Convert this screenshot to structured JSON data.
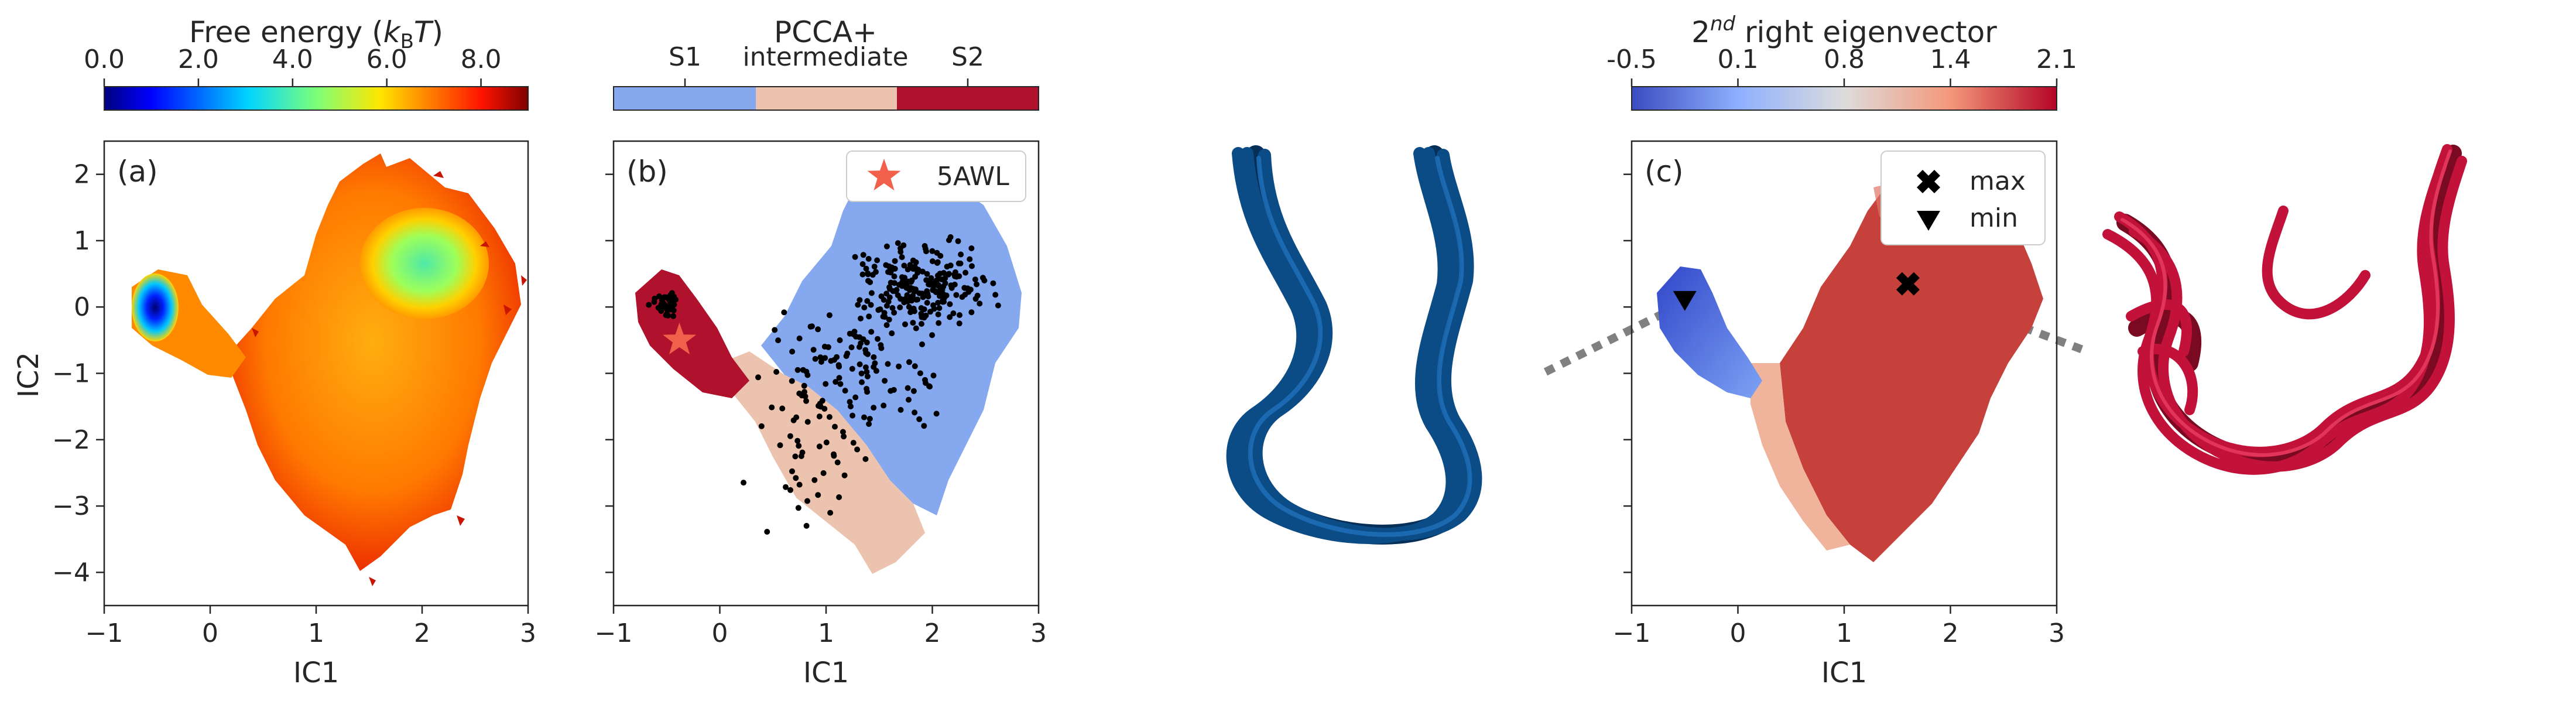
{
  "colors": {
    "pcca_S1": "#86a8ef",
    "pcca_intermediate": "#ecc3ae",
    "pcca_S2": "#b0122d",
    "star": "#f0604a",
    "structure_S1": "#0b4c86",
    "structure_S2": "#c3123a",
    "eigen_low": "#3b4cc0",
    "eigen_high": "#b40426"
  },
  "colorbars": [
    {
      "title": "Free energy (",
      "title_k": "k",
      "title_sub": "B",
      "title_T": "T",
      "title_close": ")",
      "ticks": [
        "0.0",
        "2.0",
        "4.0",
        "6.0",
        "8.0"
      ],
      "colormap": "jet"
    },
    {
      "title": "PCCA+",
      "ticks": [
        "S1",
        "S2"
      ],
      "middle_label": "intermediate",
      "colormap": "categorical"
    },
    {
      "title_sup": "nd",
      "title_base": "2",
      "title_rest": " right eigenvector",
      "ticks": [
        "-0.5",
        "0.1",
        "0.8",
        "1.4",
        "2.1"
      ],
      "colormap": "coolwarm"
    }
  ],
  "panels": [
    {
      "tag": "(a)"
    },
    {
      "tag": "(b)",
      "legend": [
        "5AWL"
      ]
    },
    {
      "tag": "(c)",
      "legend": [
        "max",
        "min"
      ]
    }
  ],
  "axes": {
    "xlabel": "IC1",
    "ylabel": "IC2",
    "xticks": [
      "−1",
      "0",
      "1",
      "2",
      "3"
    ],
    "yticks": [
      "2",
      "1",
      "0",
      "−1",
      "−2",
      "−3",
      "−4"
    ]
  },
  "chart_data": [
    {
      "type": "heatmap",
      "title": "",
      "colorbar_label": "Free energy (kBT)",
      "xlabel": "IC1",
      "ylabel": "IC2",
      "xlim": [
        -1,
        3
      ],
      "ylim": [
        -4.5,
        2.5
      ],
      "zlim": [
        0,
        9
      ],
      "regions": [
        {
          "name": "S1 basin",
          "center": [
            -0.55,
            0.0
          ],
          "value": 0.5
        },
        {
          "name": "S2 basin",
          "center": [
            1.85,
            0.55
          ],
          "value": 5.0
        }
      ]
    },
    {
      "type": "scatter",
      "title": "",
      "colorbar_label": "PCCA+",
      "xlabel": "IC1",
      "ylabel": "IC2",
      "xlim": [
        -1,
        3
      ],
      "ylim": [
        -4.5,
        2.5
      ],
      "states": [
        "S1",
        "intermediate",
        "S2"
      ],
      "series": [
        {
          "name": "5AWL",
          "values": [
            [
              -0.38,
              -0.5
            ]
          ]
        }
      ]
    },
    {
      "type": "heatmap",
      "title": "",
      "colorbar_label": "2nd right eigenvector",
      "xlabel": "IC1",
      "ylabel": "IC2",
      "xlim": [
        -1,
        3
      ],
      "ylim": [
        -4.5,
        2.5
      ],
      "zlim": [
        -0.5,
        2.1
      ],
      "series": [
        {
          "name": "max",
          "values": [
            [
              1.6,
              0.35
            ]
          ]
        },
        {
          "name": "min",
          "values": [
            [
              -0.5,
              0.1
            ]
          ]
        }
      ]
    }
  ]
}
